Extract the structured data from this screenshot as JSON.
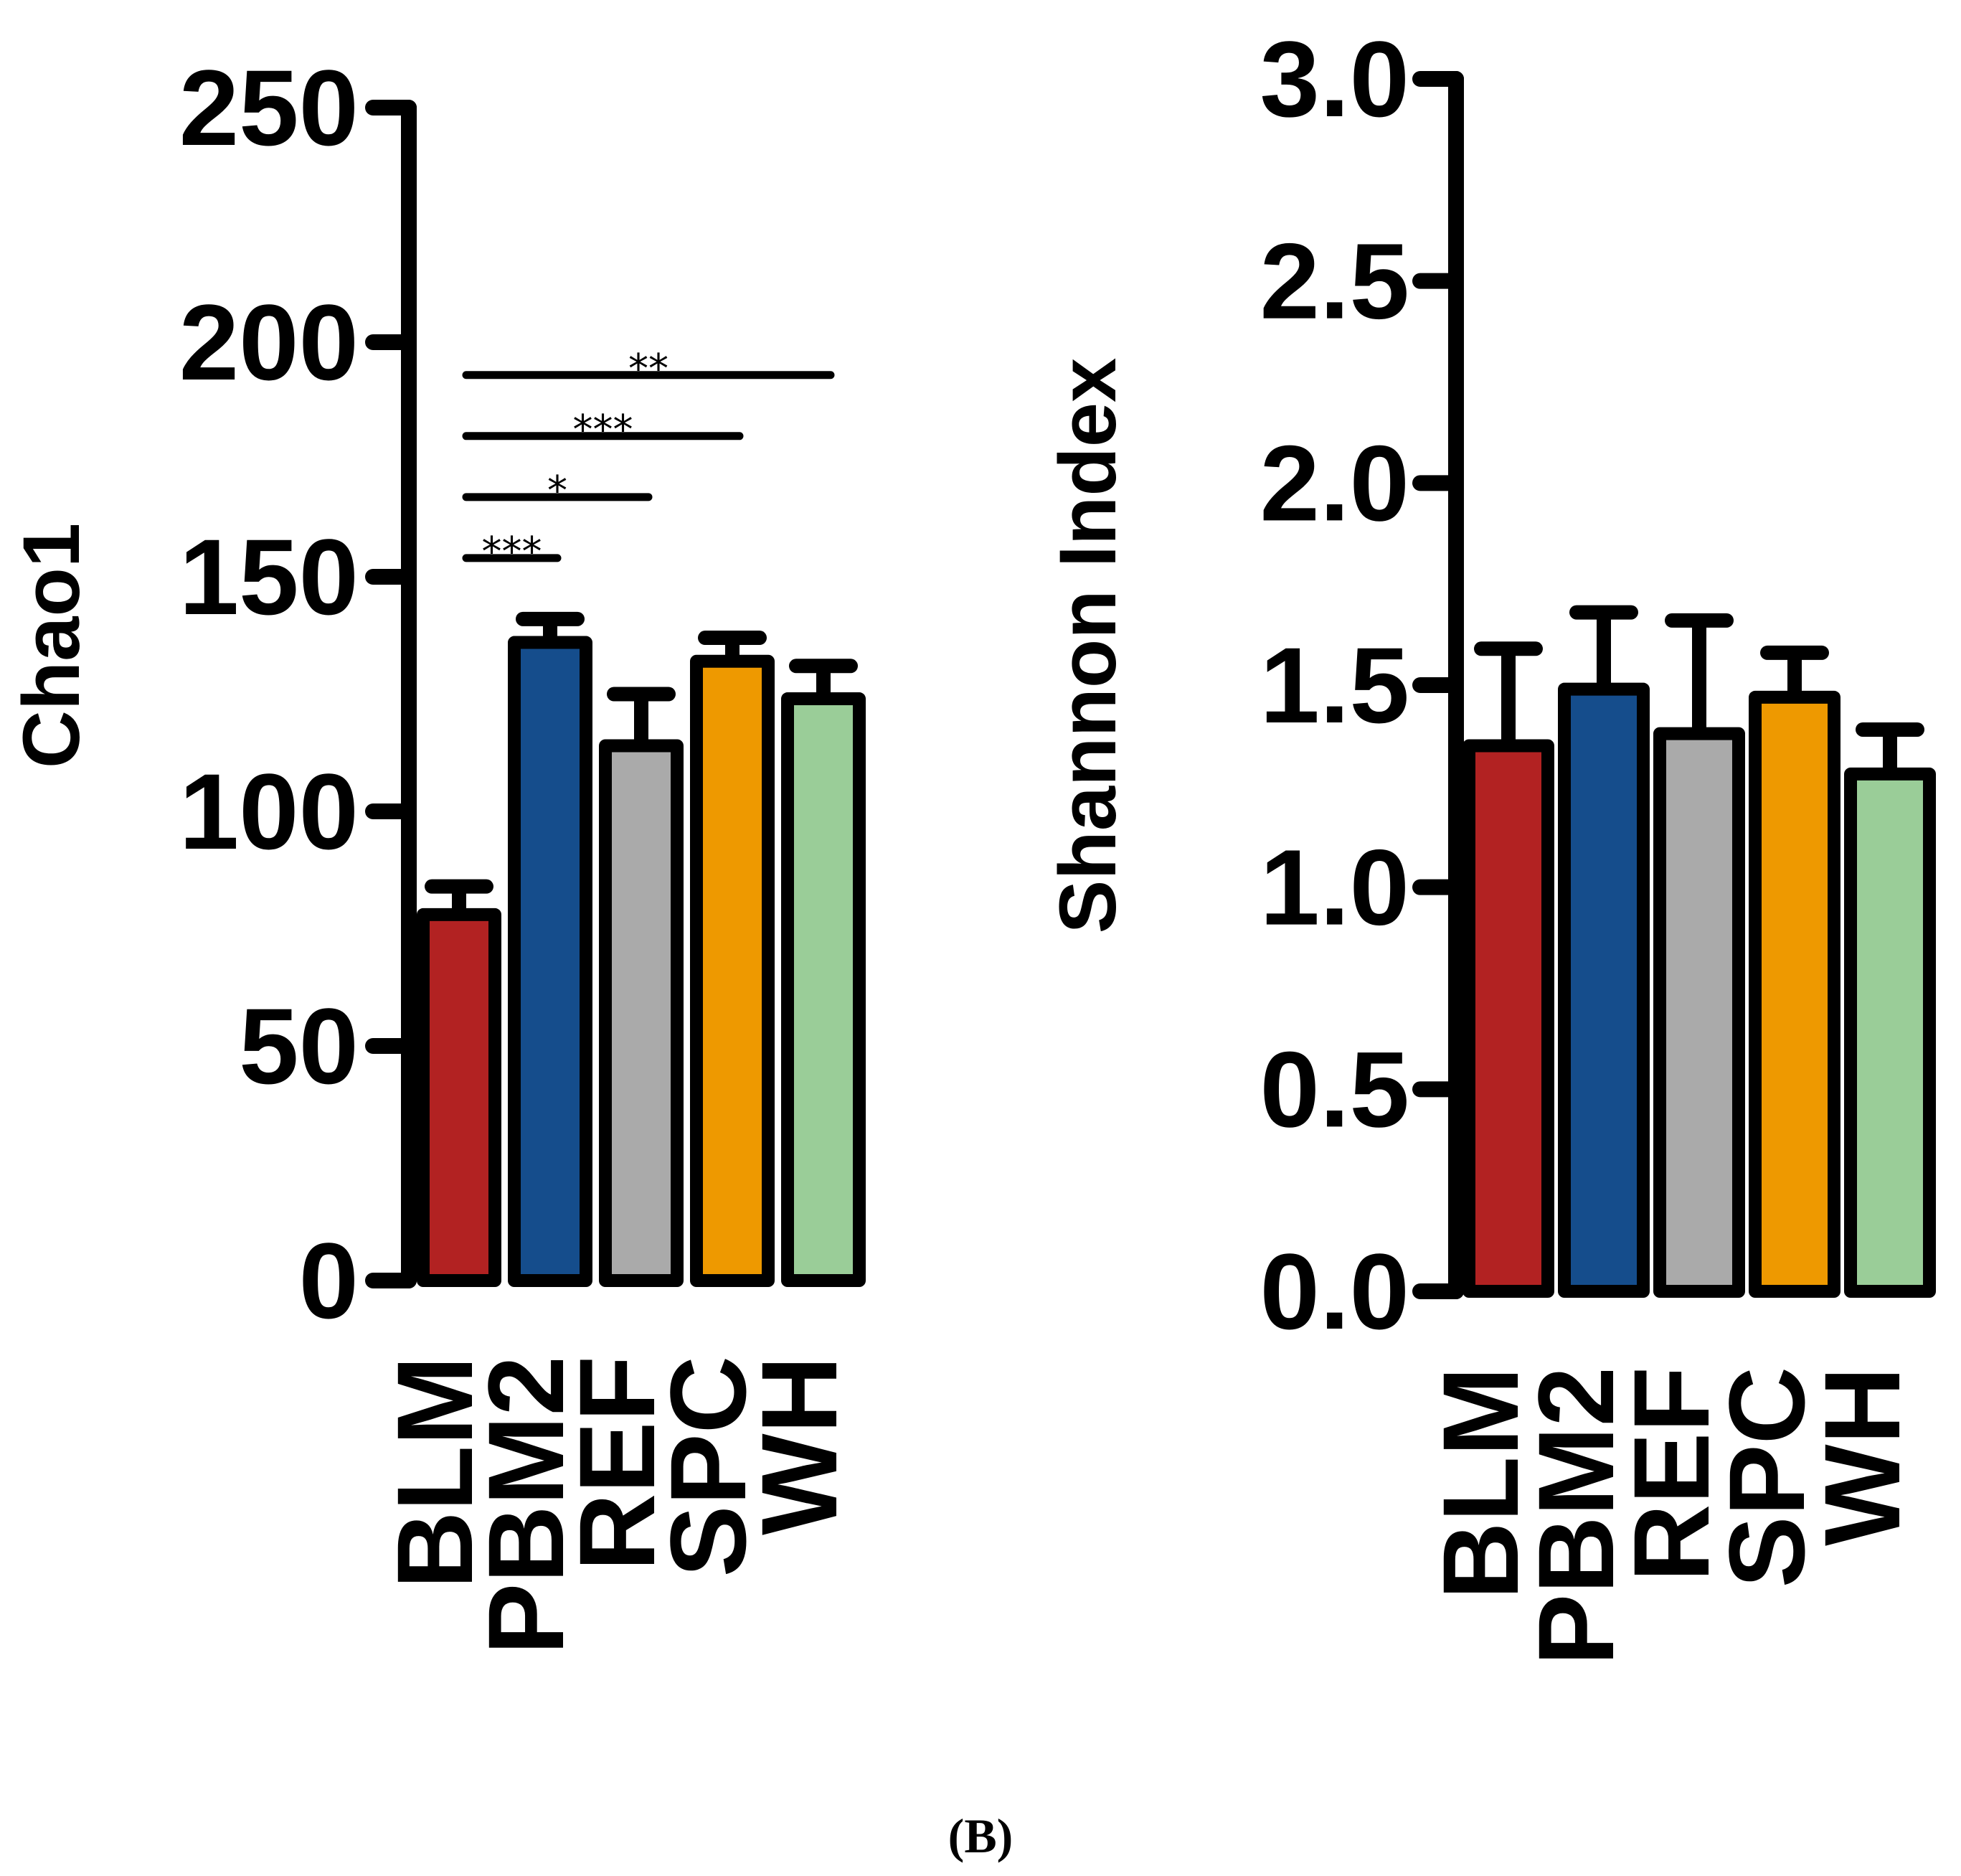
{
  "chart_data": [
    {
      "type": "bar",
      "ylabel": "Chao1",
      "xlabel": "",
      "ylim": [
        0,
        250
      ],
      "yticks": [
        0,
        50,
        100,
        150,
        200,
        250
      ],
      "yticklabels": [
        "0",
        "50",
        "100",
        "150",
        "200",
        "250"
      ],
      "categories": [
        "BLM",
        "PBM2",
        "REF",
        "SPC",
        "WH"
      ],
      "values": [
        78,
        136,
        114,
        132,
        124
      ],
      "errors": [
        6,
        5,
        11,
        5,
        7
      ],
      "colors": [
        "#b22222",
        "#154d8c",
        "#aaaaaa",
        "#ee9900",
        "#9acd98"
      ],
      "significance": [
        {
          "from": "BLM",
          "to": "PBM2",
          "label": "***",
          "y": 154
        },
        {
          "from": "BLM",
          "to": "REF",
          "label": "*",
          "y": 167
        },
        {
          "from": "BLM",
          "to": "SPC",
          "label": "***",
          "y": 180
        },
        {
          "from": "BLM",
          "to": "WH",
          "label": "**",
          "y": 193
        }
      ]
    },
    {
      "type": "bar",
      "ylabel": "Shannon Index",
      "xlabel": "",
      "ylim": [
        0,
        3.0
      ],
      "yticks": [
        0,
        0.5,
        1.0,
        1.5,
        2.0,
        2.5,
        3.0
      ],
      "yticklabels": [
        "0.0",
        "0.5",
        "1.0",
        "1.5",
        "2.0",
        "2.5",
        "3.0"
      ],
      "categories": [
        "BLM",
        "PBM2",
        "REF",
        "SPC",
        "WH"
      ],
      "values": [
        1.35,
        1.49,
        1.38,
        1.47,
        1.28
      ],
      "errors": [
        0.24,
        0.19,
        0.28,
        0.11,
        0.11
      ],
      "colors": [
        "#b22222",
        "#154d8c",
        "#aaaaaa",
        "#ee9900",
        "#9acd98"
      ],
      "significance": []
    }
  ],
  "panel_label": "(B)"
}
